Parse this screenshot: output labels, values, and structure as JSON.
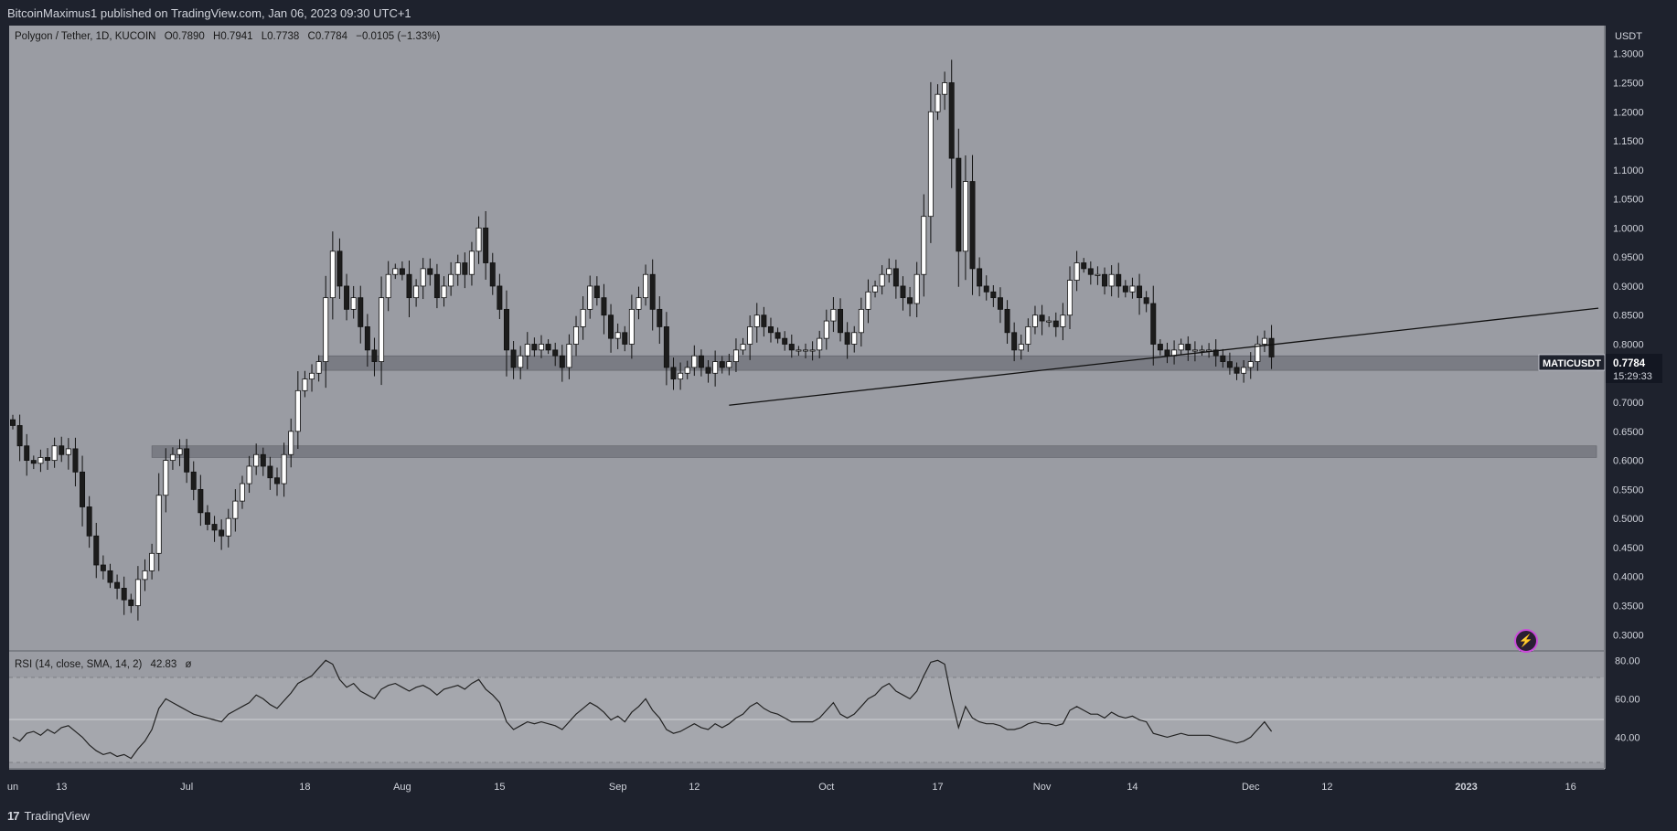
{
  "header": {
    "published_by": "BitcoinMaximus1 published on TradingView.com, Jan 06, 2023 09:30 UTC+1",
    "symbol_line": "Polygon / Tether, 1D, KUCOIN",
    "open_label": "O",
    "open": "0.7890",
    "high_label": "H",
    "high": "0.7941",
    "low_label": "L",
    "low": "0.7738",
    "close_label": "C",
    "close": "0.7784",
    "change": "−0.0105 (−1.33%)"
  },
  "rsi": {
    "label": "RSI (14, close, SMA, 14, 2)",
    "value": "42.83",
    "extra": "ø"
  },
  "price_axis": {
    "unit": "USDT",
    "ticks": [
      "1.3000",
      "1.2500",
      "1.2000",
      "1.1500",
      "1.1000",
      "1.0500",
      "1.0000",
      "0.9500",
      "0.9000",
      "0.8500",
      "0.8000",
      "0.7500",
      "0.7000",
      "0.6500",
      "0.6000",
      "0.5500",
      "0.5000",
      "0.4500",
      "0.4000",
      "0.3500",
      "0.3000"
    ],
    "last_label": "MATICUSDT",
    "last_price": "0.7784",
    "countdown": "15:29:33"
  },
  "rsi_axis": {
    "ticks": [
      "80.00",
      "60.00",
      "40.00"
    ]
  },
  "time_axis": {
    "labels": [
      "un",
      "13",
      "Jul",
      "18",
      "Aug",
      "15",
      "Sep",
      "12",
      "Oct",
      "17",
      "Nov",
      "14",
      "Dec",
      "12",
      "2023",
      "16"
    ]
  },
  "footer": {
    "brand": "TradingView",
    "logo_glyph": "17"
  },
  "colors": {
    "background": "#9a9ca3",
    "frame": "#1e222d",
    "up_candle": "#ffffff",
    "down_candle": "#1c1c1c",
    "zone": "#6f727a",
    "rsi_line": "#222222",
    "rsi_band": "#a5a7ad"
  },
  "chart_data": [
    {
      "type": "candlestick",
      "title": "Polygon / Tether, 1D, KUCOIN",
      "ylabel": "USDT",
      "ylim": [
        0.28,
        1.32
      ],
      "x_range": [
        "2022-06-06",
        "2023-01-20"
      ],
      "x_ticks": [
        {
          "label": "un",
          "date": "2022-06-01"
        },
        {
          "label": "13",
          "date": "2022-06-13"
        },
        {
          "label": "Jul",
          "date": "2022-07-01"
        },
        {
          "label": "18",
          "date": "2022-07-18"
        },
        {
          "label": "Aug",
          "date": "2022-08-01"
        },
        {
          "label": "15",
          "date": "2022-08-15"
        },
        {
          "label": "Sep",
          "date": "2022-09-01"
        },
        {
          "label": "12",
          "date": "2022-09-12"
        },
        {
          "label": "Oct",
          "date": "2022-10-01"
        },
        {
          "label": "17",
          "date": "2022-10-17"
        },
        {
          "label": "Nov",
          "date": "2022-11-01"
        },
        {
          "label": "14",
          "date": "2022-11-14"
        },
        {
          "label": "Dec",
          "date": "2022-12-01"
        },
        {
          "label": "12",
          "date": "2022-12-12"
        },
        {
          "label": "2023",
          "date": "2023-01-01"
        },
        {
          "label": "16",
          "date": "2023-01-16"
        }
      ],
      "closes_start_date": "2022-06-06",
      "closes": [
        0.66,
        0.625,
        0.6,
        0.595,
        0.605,
        0.6,
        0.625,
        0.61,
        0.62,
        0.58,
        0.52,
        0.47,
        0.42,
        0.41,
        0.39,
        0.38,
        0.36,
        0.35,
        0.395,
        0.41,
        0.44,
        0.54,
        0.6,
        0.61,
        0.62,
        0.58,
        0.55,
        0.51,
        0.49,
        0.48,
        0.47,
        0.5,
        0.53,
        0.56,
        0.59,
        0.61,
        0.59,
        0.57,
        0.56,
        0.61,
        0.65,
        0.72,
        0.74,
        0.75,
        0.77,
        0.88,
        0.96,
        0.9,
        0.86,
        0.88,
        0.83,
        0.79,
        0.77,
        0.88,
        0.92,
        0.93,
        0.92,
        0.88,
        0.9,
        0.93,
        0.92,
        0.88,
        0.9,
        0.92,
        0.94,
        0.92,
        0.96,
        1.0,
        0.94,
        0.9,
        0.86,
        0.79,
        0.76,
        0.78,
        0.8,
        0.79,
        0.8,
        0.79,
        0.78,
        0.76,
        0.8,
        0.83,
        0.86,
        0.9,
        0.88,
        0.85,
        0.81,
        0.82,
        0.8,
        0.86,
        0.88,
        0.92,
        0.86,
        0.83,
        0.76,
        0.74,
        0.75,
        0.76,
        0.78,
        0.76,
        0.75,
        0.77,
        0.76,
        0.77,
        0.79,
        0.8,
        0.83,
        0.85,
        0.83,
        0.82,
        0.81,
        0.8,
        0.79,
        0.79,
        0.79,
        0.79,
        0.81,
        0.84,
        0.86,
        0.82,
        0.8,
        0.82,
        0.86,
        0.89,
        0.9,
        0.92,
        0.93,
        0.9,
        0.88,
        0.87,
        0.92,
        1.02,
        1.2,
        1.23,
        1.25,
        1.12,
        0.96,
        1.08,
        0.93,
        0.9,
        0.89,
        0.88,
        0.86,
        0.82,
        0.79,
        0.8,
        0.83,
        0.85,
        0.84,
        0.84,
        0.83,
        0.85,
        0.91,
        0.94,
        0.93,
        0.92,
        0.92,
        0.9,
        0.92,
        0.9,
        0.89,
        0.9,
        0.88,
        0.87,
        0.8,
        0.79,
        0.78,
        0.79,
        0.8,
        0.79,
        0.79,
        0.79,
        0.79,
        0.78,
        0.77,
        0.76,
        0.75,
        0.76,
        0.77,
        0.8,
        0.81,
        0.778
      ],
      "zones": [
        {
          "low": 0.755,
          "high": 0.78,
          "from": "2022-07-20"
        },
        {
          "low": 0.605,
          "high": 0.625,
          "from": "2022-06-26"
        }
      ],
      "trendline": {
        "from": {
          "date": "2022-09-17",
          "price": 0.695
        },
        "to": {
          "date": "2023-01-20",
          "price": 0.862
        }
      },
      "last_price": 0.7784
    },
    {
      "type": "line",
      "title": "RSI (14, close, SMA, 14, 2)",
      "ylim": [
        25,
        83
      ],
      "bands": {
        "upper": 70,
        "middle": 50,
        "lower": 30
      },
      "closes_start_date": "2022-06-06",
      "values": [
        40,
        38,
        42,
        43,
        41,
        44,
        42,
        45,
        46,
        43,
        40,
        36,
        33,
        31,
        32,
        30,
        31,
        29,
        34,
        38,
        44,
        55,
        60,
        58,
        56,
        54,
        52,
        51,
        50,
        49,
        48,
        52,
        54,
        56,
        58,
        62,
        60,
        57,
        55,
        59,
        63,
        68,
        70,
        72,
        76,
        80,
        78,
        70,
        66,
        68,
        64,
        62,
        60,
        65,
        67,
        68,
        66,
        64,
        66,
        67,
        65,
        62,
        65,
        66,
        67,
        65,
        68,
        70,
        65,
        62,
        58,
        48,
        44,
        46,
        48,
        47,
        48,
        47,
        46,
        44,
        48,
        52,
        55,
        58,
        56,
        53,
        49,
        51,
        48,
        53,
        56,
        60,
        54,
        50,
        44,
        42,
        43,
        45,
        47,
        45,
        44,
        47,
        45,
        47,
        50,
        52,
        56,
        58,
        55,
        53,
        52,
        50,
        48,
        48,
        48,
        48,
        50,
        54,
        58,
        52,
        50,
        52,
        56,
        60,
        62,
        66,
        68,
        64,
        62,
        60,
        64,
        72,
        79,
        80,
        78,
        60,
        45,
        56,
        50,
        48,
        47,
        47,
        46,
        44,
        44,
        45,
        47,
        48,
        47,
        47,
        46,
        47,
        54,
        56,
        54,
        52,
        52,
        50,
        53,
        51,
        50,
        51,
        49,
        48,
        42,
        41,
        40,
        41,
        42,
        41,
        41,
        41,
        41,
        40,
        39,
        38,
        37,
        38,
        40,
        44,
        48,
        43
      ]
    }
  ]
}
